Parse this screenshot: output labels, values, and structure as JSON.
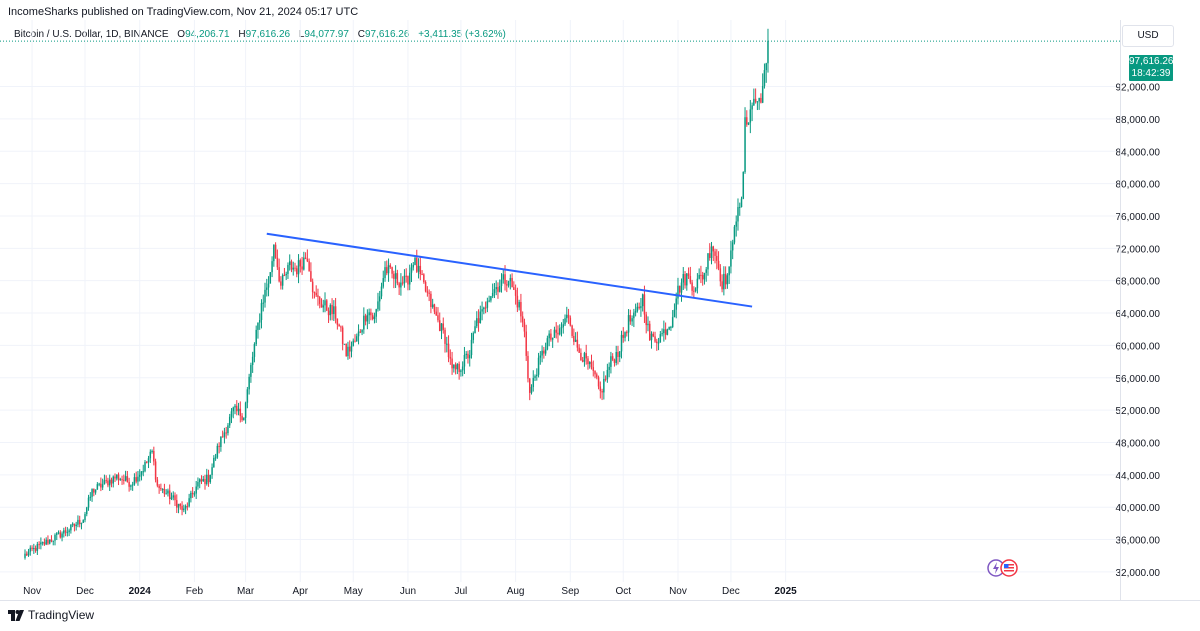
{
  "header": {
    "publisher": "IncomeSharks published on TradingView.com, Nov 21, 2024 05:17 UTC"
  },
  "legend": {
    "symbol": "Bitcoin / U.S. Dollar, 1D, BINANCE",
    "open_label": "O",
    "open": "94,206.71",
    "high_label": "H",
    "high": "97,616.26",
    "low_label": "L",
    "low": "94,077.97",
    "close_label": "C",
    "close": "97,616.26",
    "change": "+3,411.35 (+3.62%)"
  },
  "currency": "USD",
  "last_price": {
    "price": "97,616.26",
    "countdown": "18:42:39"
  },
  "footer": {
    "brand": "TradingView"
  },
  "colors": {
    "up": "#089981",
    "down": "#f23645",
    "trendline": "#2962ff",
    "grid": "#f0f3fa"
  },
  "chart_data": {
    "type": "candlestick",
    "title": "Bitcoin / U.S. Dollar, 1D, BINANCE",
    "ylim": [
      30500,
      99000
    ],
    "y_ticks": [
      32000,
      36000,
      40000,
      44000,
      48000,
      52000,
      56000,
      60000,
      64000,
      68000,
      72000,
      76000,
      80000,
      84000,
      88000,
      92000
    ],
    "y_tick_labels": [
      "32,000.00",
      "36,000.00",
      "40,000.00",
      "44,000.00",
      "48,000.00",
      "52,000.00",
      "56,000.00",
      "60,000.00",
      "64,000.00",
      "68,000.00",
      "72,000.00",
      "76,000.00",
      "80,000.00",
      "84,000.00",
      "88,000.00",
      "92,000.00"
    ],
    "x_labels": [
      "Nov",
      "Dec",
      "2024",
      "Feb",
      "Mar",
      "Apr",
      "May",
      "Jun",
      "Jul",
      "Aug",
      "Sep",
      "Oct",
      "Nov",
      "Dec",
      "2025"
    ],
    "x_label_days": [
      4,
      34,
      65,
      96,
      125,
      156,
      186,
      217,
      247,
      278,
      309,
      339,
      370,
      400,
      431
    ],
    "date_start": "2023-10-28",
    "close_anchors": [
      [
        0,
        34100
      ],
      [
        8,
        35200
      ],
      [
        18,
        36400
      ],
      [
        26,
        37400
      ],
      [
        33,
        38600
      ],
      [
        38,
        42000
      ],
      [
        44,
        42800
      ],
      [
        52,
        43800
      ],
      [
        60,
        43000
      ],
      [
        67,
        44800
      ],
      [
        72,
        46800
      ],
      [
        75,
        42600
      ],
      [
        84,
        41000
      ],
      [
        90,
        39500
      ],
      [
        98,
        42900
      ],
      [
        104,
        43600
      ],
      [
        110,
        47800
      ],
      [
        118,
        51900
      ],
      [
        124,
        51400
      ],
      [
        128,
        57300
      ],
      [
        134,
        65100
      ],
      [
        139,
        68700
      ],
      [
        141,
        72700
      ],
      [
        145,
        67300
      ],
      [
        150,
        69800
      ],
      [
        154,
        69500
      ],
      [
        160,
        71200
      ],
      [
        164,
        66000
      ],
      [
        170,
        64800
      ],
      [
        176,
        63800
      ],
      [
        182,
        59000
      ],
      [
        188,
        60800
      ],
      [
        194,
        64400
      ],
      [
        198,
        63200
      ],
      [
        204,
        69500
      ],
      [
        210,
        68200
      ],
      [
        216,
        67700
      ],
      [
        220,
        70600
      ],
      [
        226,
        67300
      ],
      [
        232,
        64000
      ],
      [
        238,
        61000
      ],
      [
        242,
        56800
      ],
      [
        246,
        57200
      ],
      [
        252,
        59100
      ],
      [
        256,
        63000
      ],
      [
        260,
        64200
      ],
      [
        262,
        66100
      ],
      [
        270,
        67900
      ],
      [
        274,
        68400
      ],
      [
        280,
        64800
      ],
      [
        283,
        61500
      ],
      [
        286,
        54000
      ],
      [
        290,
        57100
      ],
      [
        296,
        60600
      ],
      [
        302,
        61400
      ],
      [
        308,
        63800
      ],
      [
        312,
        60100
      ],
      [
        318,
        57900
      ],
      [
        322,
        56500
      ],
      [
        326,
        54100
      ],
      [
        332,
        58000
      ],
      [
        336,
        59200
      ],
      [
        342,
        63000
      ],
      [
        345,
        63200
      ],
      [
        350,
        65900
      ],
      [
        354,
        60800
      ],
      [
        358,
        60900
      ],
      [
        361,
        61400
      ],
      [
        366,
        63000
      ],
      [
        369,
        66200
      ],
      [
        372,
        67800
      ],
      [
        375,
        68500
      ],
      [
        379,
        67400
      ],
      [
        382,
        68100
      ],
      [
        385,
        69000
      ],
      [
        389,
        72700
      ],
      [
        392,
        70600
      ],
      [
        395,
        67800
      ],
      [
        399,
        68900
      ],
      [
        402,
        75600
      ],
      [
        405,
        76500
      ],
      [
        407,
        80400
      ],
      [
        408,
        88700
      ],
      [
        410,
        87900
      ],
      [
        413,
        90600
      ],
      [
        415,
        89800
      ],
      [
        418,
        91900
      ],
      [
        420,
        94200
      ],
      [
        421,
        97616
      ]
    ],
    "trendline": {
      "start": {
        "day": 137,
        "value": 73800
      },
      "end": {
        "day": 412,
        "value": 64800
      }
    },
    "last": {
      "day": 421,
      "value": 97616.26
    }
  }
}
